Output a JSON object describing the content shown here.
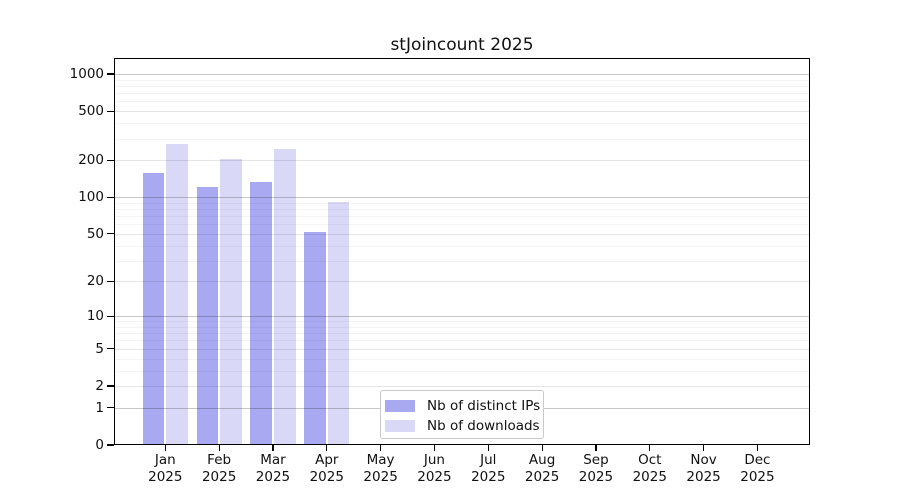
{
  "chart_data": {
    "type": "bar",
    "title": "stJoincount 2025",
    "categories": [
      "Jan",
      "Feb",
      "Mar",
      "Apr",
      "May",
      "Jun",
      "Jul",
      "Aug",
      "Sep",
      "Oct",
      "Nov",
      "Dec"
    ],
    "year_label": "2025",
    "series": [
      {
        "name": "Nb of distinct IPs",
        "color": "#a9a9f2",
        "values": [
          157,
          121,
          134,
          52,
          0,
          0,
          0,
          0,
          0,
          0,
          0,
          0
        ]
      },
      {
        "name": "Nb of downloads",
        "color": "#d9d9f7",
        "values": [
          271,
          203,
          247,
          92,
          0,
          0,
          0,
          0,
          0,
          0,
          0,
          0
        ]
      }
    ],
    "y_ticks": [
      1000,
      500,
      200,
      100,
      50,
      20,
      10,
      5,
      2,
      1,
      0
    ],
    "scale": "log10(1+v)",
    "ylim": [
      0,
      1350
    ],
    "xlabel": "",
    "ylabel": "",
    "grid": "horizontal",
    "legend_position": "inside-bottom-center"
  }
}
